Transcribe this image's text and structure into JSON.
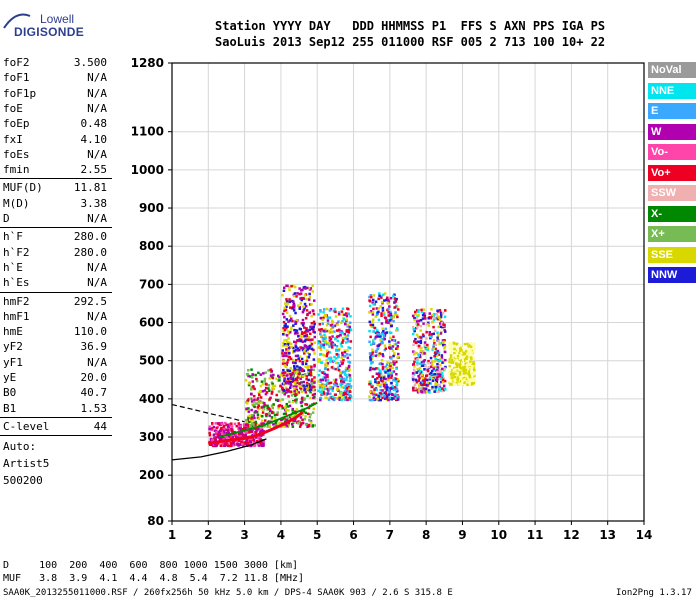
{
  "logo": {
    "brand": "Lowell",
    "product": "DIGISONDE"
  },
  "header": {
    "row1": "Station YYYY DAY   DDD HHMMSS P1  FFS S AXN PPS IGA PS",
    "row2": "SaoLuis 2013 Sep12 255 011000 RSF 005 2 713 100 10+ 22"
  },
  "params": [
    {
      "k": "foF2",
      "v": "3.500"
    },
    {
      "k": "foF1",
      "v": "N/A"
    },
    {
      "k": "foF1p",
      "v": "N/A"
    },
    {
      "k": "foE",
      "v": "N/A"
    },
    {
      "k": "foEp",
      "v": "0.48"
    },
    {
      "k": "fxI",
      "v": "4.10"
    },
    {
      "k": "foEs",
      "v": "N/A"
    },
    {
      "k": "fmin",
      "v": "2.55"
    },
    {
      "k": "MUF(D)",
      "v": "11.81"
    },
    {
      "k": "M(D)",
      "v": "3.38"
    },
    {
      "k": "D",
      "v": "N/A"
    },
    {
      "k": "h`F",
      "v": "280.0"
    },
    {
      "k": "h`F2",
      "v": "280.0"
    },
    {
      "k": "h`E",
      "v": "N/A"
    },
    {
      "k": "h`Es",
      "v": "N/A"
    },
    {
      "k": "hmF2",
      "v": "292.5"
    },
    {
      "k": "hmF1",
      "v": "N/A"
    },
    {
      "k": "hmE",
      "v": "110.0"
    },
    {
      "k": "yF2",
      "v": "36.9"
    },
    {
      "k": "yF1",
      "v": "N/A"
    },
    {
      "k": "yE",
      "v": "20.0"
    },
    {
      "k": "B0",
      "v": "40.7"
    },
    {
      "k": "B1",
      "v": "1.53"
    },
    {
      "k": "C-level",
      "v": "44"
    }
  ],
  "auto": {
    "line1": "Auto:",
    "line2": "Artist5",
    "line3": "500200"
  },
  "legend": [
    {
      "label": "NoVal",
      "color": "#9a9a9a"
    },
    {
      "label": "NNE",
      "color": "#00e5ee"
    },
    {
      "label": "E",
      "color": "#3aa8ff"
    },
    {
      "label": "W",
      "color": "#b000b0"
    },
    {
      "label": "Vo-",
      "color": "#ff44aa"
    },
    {
      "label": "Vo+",
      "color": "#ee0022"
    },
    {
      "label": "SSW",
      "color": "#f0b0b0"
    },
    {
      "label": "X-",
      "color": "#008800"
    },
    {
      "label": "X+",
      "color": "#77bb55"
    },
    {
      "label": "SSE",
      "color": "#d8d800"
    },
    {
      "label": "NNW",
      "color": "#1c1cd8"
    }
  ],
  "footer": {
    "row1": "D     100  200  400  600  800 1000 1500 3000 [km]",
    "row2": "MUF   3.8  3.9  4.1  4.4  4.8  5.4  7.2 11.8 [MHz]",
    "row3": "SAA0K_2013255011000.RSF / 260fx256h 50 kHz 5.0 km / DPS-4 SAA0K 903 / 2.6 S 315.8 E",
    "version": "Ion2Png 1.3.17"
  },
  "chart_data": {
    "type": "scatter",
    "xlim": [
      1,
      14
    ],
    "ylim": [
      80,
      1280
    ],
    "x_ticks": [
      1,
      2,
      3,
      4,
      5,
      6,
      7,
      8,
      9,
      10,
      11,
      12,
      13,
      14
    ],
    "y_ticks": [
      80,
      200,
      300,
      400,
      500,
      600,
      700,
      800,
      900,
      1000,
      1100,
      1280
    ],
    "grid": true,
    "ordinary_trace": [
      [
        2.0,
        283
      ],
      [
        2.3,
        288
      ],
      [
        2.6,
        292
      ],
      [
        2.9,
        296
      ],
      [
        3.2,
        300
      ],
      [
        3.5,
        310
      ],
      [
        3.8,
        322
      ],
      [
        4.1,
        335
      ],
      [
        4.4,
        350
      ],
      [
        4.6,
        365
      ]
    ],
    "x_trace": [
      [
        2.3,
        300
      ],
      [
        2.7,
        310
      ],
      [
        3.1,
        320
      ],
      [
        3.5,
        330
      ],
      [
        3.9,
        345
      ],
      [
        4.3,
        360
      ],
      [
        4.7,
        375
      ],
      [
        5.0,
        390
      ]
    ],
    "clusters": [
      {
        "x": [
          2.0,
          3.5
        ],
        "y": [
          280,
          340
        ],
        "colors": [
          "#ee0022",
          "#ff44aa",
          "#b000b0"
        ]
      },
      {
        "x": [
          3.0,
          4.9
        ],
        "y": [
          330,
          480
        ],
        "colors": [
          "#d8d800",
          "#008800",
          "#77bb55",
          "#ee0022",
          "#b000b0"
        ]
      },
      {
        "x": [
          4.0,
          4.9
        ],
        "y": [
          420,
          700
        ],
        "colors": [
          "#d8d800",
          "#b000b0",
          "#1c1cd8",
          "#ee0022"
        ]
      },
      {
        "x": [
          5.0,
          5.9
        ],
        "y": [
          400,
          640
        ],
        "colors": [
          "#d8d800",
          "#00e5ee",
          "#3aa8ff",
          "#b000b0",
          "#ee0022"
        ]
      },
      {
        "x": [
          6.4,
          7.2
        ],
        "y": [
          400,
          680
        ],
        "colors": [
          "#d8d800",
          "#b000b0",
          "#1c1cd8",
          "#ee0022",
          "#00e5ee",
          "#3aa8ff"
        ]
      },
      {
        "x": [
          7.6,
          8.5
        ],
        "y": [
          420,
          640
        ],
        "colors": [
          "#d8d800",
          "#b000b0",
          "#1c1cd8",
          "#ee0022",
          "#00e5ee",
          "#f0b0b0"
        ]
      },
      {
        "x": [
          8.6,
          9.3
        ],
        "y": [
          440,
          550
        ],
        "colors": [
          "#d8d800",
          "#ffffaa"
        ]
      }
    ],
    "lower_curve": [
      [
        1.0,
        240
      ],
      [
        1.8,
        248
      ],
      [
        2.5,
        262
      ],
      [
        3.2,
        280
      ],
      [
        3.6,
        295
      ]
    ],
    "upper_dashed": [
      [
        1.0,
        385
      ],
      [
        1.6,
        372
      ],
      [
        2.1,
        360
      ],
      [
        2.6,
        350
      ],
      [
        3.0,
        340
      ]
    ]
  }
}
